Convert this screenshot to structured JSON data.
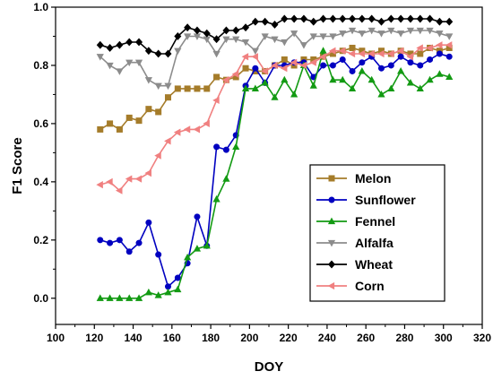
{
  "chart_data": {
    "type": "line",
    "title": "",
    "xlabel": "DOY",
    "ylabel": "F1 Score",
    "xlim": [
      100,
      320
    ],
    "ylim": [
      -0.09,
      1.0
    ],
    "xticks": [
      100,
      120,
      140,
      160,
      180,
      200,
      220,
      240,
      260,
      280,
      300,
      320
    ],
    "yticks": [
      0.0,
      0.2,
      0.4,
      0.6,
      0.8,
      1.0
    ],
    "ytick_labels": [
      "0.0",
      "0.2",
      "0.4",
      "0.6",
      "0.8",
      "1.0"
    ],
    "grid": false,
    "legend_position": "center-right",
    "x": [
      123,
      128,
      133,
      138,
      143,
      148,
      153,
      158,
      163,
      168,
      173,
      178,
      183,
      188,
      193,
      198,
      203,
      208,
      213,
      218,
      223,
      228,
      233,
      238,
      243,
      248,
      253,
      258,
      263,
      268,
      273,
      278,
      283,
      288,
      293,
      298,
      303
    ],
    "series": [
      {
        "name": "Melon",
        "color": "#a57c2a",
        "marker": "square",
        "values": [
          0.58,
          0.6,
          0.58,
          0.62,
          0.61,
          0.65,
          0.64,
          0.69,
          0.72,
          0.72,
          0.72,
          0.72,
          0.76,
          0.75,
          0.76,
          0.79,
          0.78,
          0.78,
          0.8,
          0.82,
          0.8,
          0.82,
          0.82,
          0.83,
          0.84,
          0.85,
          0.86,
          0.85,
          0.84,
          0.85,
          0.84,
          0.85,
          0.84,
          0.84,
          0.86,
          0.85,
          0.86
        ]
      },
      {
        "name": "Sunflower",
        "color": "#0000c0",
        "marker": "circle",
        "values": [
          0.2,
          0.19,
          0.2,
          0.16,
          0.19,
          0.26,
          0.15,
          0.04,
          0.07,
          0.12,
          0.28,
          0.18,
          0.52,
          0.51,
          0.56,
          0.73,
          0.79,
          0.74,
          0.8,
          0.8,
          0.81,
          0.81,
          0.76,
          0.8,
          0.8,
          0.82,
          0.78,
          0.81,
          0.83,
          0.79,
          0.8,
          0.83,
          0.81,
          0.8,
          0.82,
          0.84,
          0.83
        ]
      },
      {
        "name": "Fennel",
        "color": "#139a13",
        "marker": "triangle-up",
        "values": [
          0.0,
          0.0,
          0.0,
          0.0,
          0.0,
          0.02,
          0.01,
          0.02,
          0.03,
          0.14,
          0.17,
          0.18,
          0.34,
          0.41,
          0.52,
          0.72,
          0.72,
          0.74,
          0.69,
          0.75,
          0.7,
          0.8,
          0.73,
          0.85,
          0.75,
          0.75,
          0.72,
          0.78,
          0.75,
          0.7,
          0.72,
          0.78,
          0.74,
          0.72,
          0.75,
          0.77,
          0.76
        ]
      },
      {
        "name": "Alfalfa",
        "color": "#8c8c8c",
        "marker": "triangle-down",
        "values": [
          0.83,
          0.8,
          0.78,
          0.81,
          0.81,
          0.75,
          0.73,
          0.73,
          0.85,
          0.9,
          0.9,
          0.89,
          0.84,
          0.89,
          0.89,
          0.88,
          0.85,
          0.9,
          0.89,
          0.88,
          0.91,
          0.87,
          0.9,
          0.9,
          0.9,
          0.91,
          0.92,
          0.91,
          0.92,
          0.91,
          0.92,
          0.91,
          0.92,
          0.92,
          0.92,
          0.91,
          0.9
        ]
      },
      {
        "name": "Wheat",
        "color": "#000000",
        "marker": "diamond",
        "values": [
          0.87,
          0.86,
          0.87,
          0.88,
          0.88,
          0.85,
          0.84,
          0.84,
          0.9,
          0.93,
          0.92,
          0.91,
          0.89,
          0.92,
          0.92,
          0.93,
          0.95,
          0.95,
          0.94,
          0.96,
          0.96,
          0.96,
          0.95,
          0.96,
          0.96,
          0.96,
          0.96,
          0.96,
          0.96,
          0.95,
          0.96,
          0.96,
          0.96,
          0.96,
          0.96,
          0.95,
          0.95
        ]
      },
      {
        "name": "Corn",
        "color": "#f08080",
        "marker": "triangle-left",
        "values": [
          0.39,
          0.4,
          0.37,
          0.41,
          0.41,
          0.43,
          0.49,
          0.54,
          0.57,
          0.58,
          0.58,
          0.6,
          0.68,
          0.75,
          0.77,
          0.83,
          0.83,
          0.78,
          0.8,
          0.79,
          0.81,
          0.8,
          0.81,
          0.83,
          0.85,
          0.85,
          0.84,
          0.84,
          0.84,
          0.84,
          0.84,
          0.85,
          0.83,
          0.86,
          0.86,
          0.87,
          0.87
        ]
      }
    ]
  }
}
